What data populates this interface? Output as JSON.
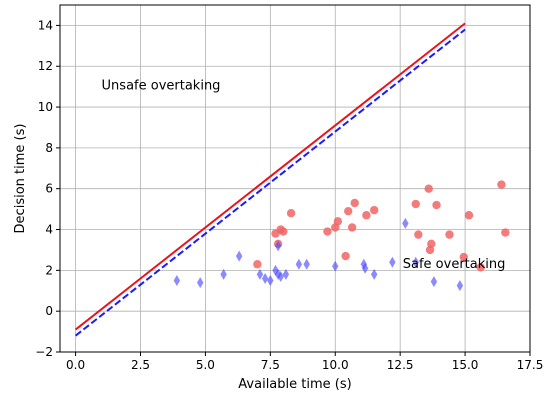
{
  "chart_data": {
    "type": "scatter",
    "title": "",
    "xlabel": "Available time (s)",
    "ylabel": "Decision time (s)",
    "xlim": [
      -0.6,
      17.5
    ],
    "ylim": [
      -2,
      15
    ],
    "xticks": [
      0.0,
      2.5,
      5.0,
      7.5,
      10.0,
      12.5,
      15.0,
      17.5
    ],
    "xtick_labels": [
      "0.0",
      "2.5",
      "5.0",
      "7.5",
      "10.0",
      "12.5",
      "15.0",
      "17.5"
    ],
    "yticks": [
      -2,
      0,
      2,
      4,
      6,
      8,
      10,
      12,
      14
    ],
    "ytick_labels": [
      "−2",
      "0",
      "2",
      "4",
      "6",
      "8",
      "10",
      "12",
      "14"
    ],
    "grid": true,
    "annotations": [
      {
        "text": "Unsafe overtaking",
        "x": 1.0,
        "y": 11.1
      },
      {
        "text": "Safe overtaking",
        "x": 12.6,
        "y": 2.35
      }
    ],
    "lines": [
      {
        "color": "#e8141c",
        "style": "solid",
        "x": [
          0,
          15
        ],
        "y": [
          -0.9,
          14.1
        ]
      },
      {
        "color": "#1a1aff",
        "style": "dashed",
        "x": [
          0,
          15
        ],
        "y": [
          -1.2,
          13.8
        ]
      }
    ],
    "series": [
      {
        "marker": "circle",
        "color": "#f06464",
        "x": [
          7.0,
          7.7,
          7.8,
          7.9,
          8.0,
          8.3,
          9.7,
          10.0,
          10.1,
          10.4,
          10.5,
          10.65,
          10.75,
          11.2,
          11.5,
          13.1,
          13.2,
          13.6,
          13.65,
          13.7,
          13.9,
          14.4,
          14.95,
          15.15,
          15.6,
          16.4,
          16.55
        ],
        "y": [
          2.3,
          3.8,
          3.3,
          4.0,
          3.9,
          4.8,
          3.9,
          4.1,
          4.4,
          2.7,
          4.9,
          4.1,
          5.3,
          4.7,
          4.95,
          5.25,
          3.75,
          6.0,
          3.0,
          3.3,
          5.2,
          3.75,
          2.65,
          4.7,
          2.15,
          6.2,
          3.85
        ]
      },
      {
        "marker": "diamond",
        "color": "#4d4dff",
        "x": [
          3.9,
          4.8,
          5.7,
          6.3,
          7.1,
          7.3,
          7.5,
          7.7,
          7.8,
          7.8,
          7.9,
          8.1,
          8.6,
          8.9,
          10.0,
          11.1,
          11.15,
          11.5,
          12.2,
          12.7,
          13.1,
          13.8,
          14.8
        ],
        "y": [
          1.5,
          1.4,
          1.8,
          2.7,
          1.8,
          1.6,
          1.5,
          2.0,
          1.8,
          3.2,
          1.7,
          1.8,
          2.3,
          2.3,
          2.2,
          2.3,
          2.1,
          1.8,
          2.4,
          4.3,
          2.4,
          1.45,
          1.25
        ]
      }
    ]
  }
}
